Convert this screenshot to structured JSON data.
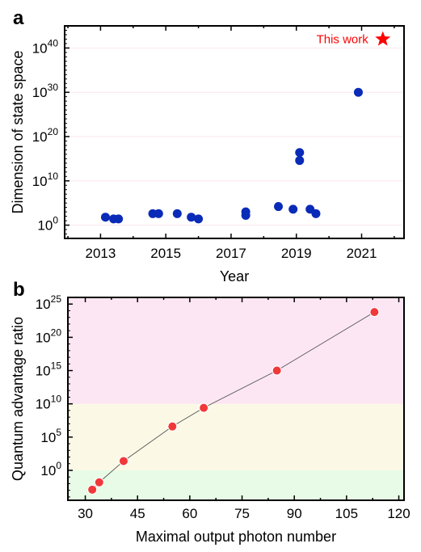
{
  "colors": {
    "point_a": "#0a2bb8",
    "point_b": "#f0383a",
    "star": "#ff0000",
    "band_pink": "#fde6f3",
    "band_yellow": "#fbf9e6",
    "band_green": "#e8fbe6",
    "gridline": "#fde4ee"
  },
  "chart_data": [
    {
      "panel": "a",
      "type": "scatter",
      "xlabel": "Year",
      "ylabel": "Dimension of state space",
      "xlim": [
        2011.9,
        2022.3
      ],
      "ylim": [
        -3,
        45
      ],
      "y_scale": "log10",
      "xticks": [
        2013,
        2015,
        2017,
        2019,
        2021
      ],
      "yticks": [
        0,
        10,
        20,
        30,
        40
      ],
      "ytick_base": "10",
      "grid": "horizontal",
      "points": [
        {
          "x": 2013.15,
          "y_log10": 1.8
        },
        {
          "x": 2013.4,
          "y_log10": 1.4
        },
        {
          "x": 2013.55,
          "y_log10": 1.4
        },
        {
          "x": 2014.6,
          "y_log10": 2.6
        },
        {
          "x": 2014.78,
          "y_log10": 2.6
        },
        {
          "x": 2015.35,
          "y_log10": 2.6
        },
        {
          "x": 2015.78,
          "y_log10": 1.8
        },
        {
          "x": 2016.0,
          "y_log10": 1.4
        },
        {
          "x": 2017.45,
          "y_log10": 2.2
        },
        {
          "x": 2017.45,
          "y_log10": 3.0
        },
        {
          "x": 2018.45,
          "y_log10": 4.2
        },
        {
          "x": 2018.9,
          "y_log10": 3.6
        },
        {
          "x": 2019.1,
          "y_log10": 16.4
        },
        {
          "x": 2019.1,
          "y_log10": 14.6
        },
        {
          "x": 2019.42,
          "y_log10": 3.6
        },
        {
          "x": 2019.6,
          "y_log10": 2.6
        },
        {
          "x": 2020.9,
          "y_log10": 30.0
        }
      ],
      "highlight": {
        "x": 2021.65,
        "y_log10": 42.0,
        "label": "This work"
      }
    },
    {
      "panel": "b",
      "type": "line",
      "xlabel": "Maximal output photon number",
      "ylabel": "Quantum advantage ratio",
      "xlim": [
        25,
        121.5
      ],
      "ylim": [
        -4.5,
        26
      ],
      "y_scale": "log10",
      "xticks": [
        30,
        45,
        60,
        75,
        90,
        105,
        120
      ],
      "yticks": [
        0,
        5,
        10,
        15,
        20,
        25
      ],
      "ytick_base": "10",
      "bands": [
        {
          "from_log10": 10,
          "to_log10": 26,
          "color": "band_pink"
        },
        {
          "from_log10": 0,
          "to_log10": 10,
          "color": "band_yellow"
        },
        {
          "from_log10": -4.5,
          "to_log10": 0,
          "color": "band_green"
        }
      ],
      "series": [
        {
          "x": [
            32,
            34,
            41,
            55,
            64,
            85,
            113
          ],
          "y_log10": [
            -2.9,
            -1.8,
            1.4,
            6.6,
            9.4,
            15.0,
            23.8
          ]
        }
      ]
    }
  ]
}
